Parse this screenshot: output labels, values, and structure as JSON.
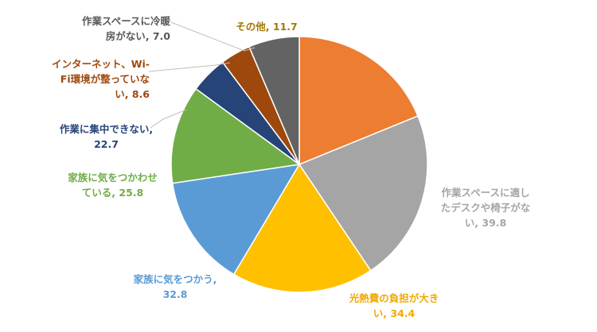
{
  "chart_data": {
    "type": "pie",
    "title": "",
    "start_angle_deg": 0,
    "direction": "clockwise",
    "slices": [
      {
        "label": "光熱費の負担が大きい",
        "label_lines": [
          "光熱費の負担が大き",
          "い, 34.4"
        ],
        "value": 34.4,
        "color": "#ED7D31",
        "text_color": "#F2A900"
      },
      {
        "label": "作業スペースに適したデスクや椅子がない",
        "label_lines": [
          "作業スペースに適し",
          "たデスクや椅子がな",
          "い, 39.8"
        ],
        "value": 39.8,
        "color": "#A5A5A5",
        "text_color": "#A5A5A5"
      },
      {
        "label": "家族に気をつかう",
        "label_lines": [
          "家族に気をつかう,",
          "32.8"
        ],
        "value": 32.8,
        "color": "#FFC000",
        "text_color": "#5B9BD5"
      },
      {
        "label": "家族に気をつかわせている",
        "label_lines": [
          "家族に気をつかわせ",
          "ている, 25.8"
        ],
        "value": 25.8,
        "color": "#5B9BD5",
        "text_color": "#70AD47"
      },
      {
        "label": "作業に集中できない",
        "label_lines": [
          "作業に集中できない,",
          "22.7"
        ],
        "value": 22.7,
        "color": "#70AD47",
        "text_color": "#264478"
      },
      {
        "label": "インターネット、Wi-Fi環境が整っていない",
        "label_lines": [
          "インターネット、Wi-",
          "Fi環境が整っていな",
          "い, 8.6"
        ],
        "value": 8.6,
        "color": "#264478",
        "text_color": "#9E480E"
      },
      {
        "label": "作業スペースに冷暖房がない",
        "label_lines": [
          "作業スペースに冷暖",
          "房がない, 7.0"
        ],
        "value": 7.0,
        "color": "#9E480E",
        "text_color": "#595959"
      },
      {
        "label": "その他",
        "label_lines": [
          "その他, 11.7"
        ],
        "value": 11.7,
        "color": "#636363",
        "text_color": "#A47A00"
      },
      {
        "label": "",
        "label_lines": [],
        "value": 0,
        "color": "#997300",
        "text_color": "#997300"
      }
    ]
  }
}
